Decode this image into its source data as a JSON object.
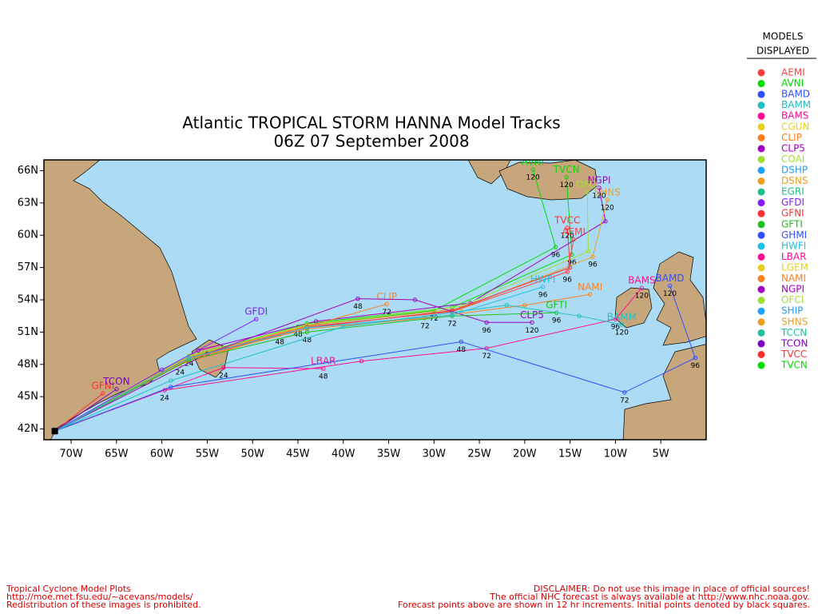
{
  "chart_data": {
    "type": "track-map",
    "title": [
      "Atlantic TROPICAL STORM HANNA Model Tracks",
      "06Z 07 September 2008"
    ],
    "xlim": [
      -73,
      0
    ],
    "ylim": [
      41,
      67
    ],
    "xticks": [
      {
        "value": -70,
        "label": "70W"
      },
      {
        "value": -65,
        "label": "65W"
      },
      {
        "value": -60,
        "label": "60W"
      },
      {
        "value": -55,
        "label": "55W"
      },
      {
        "value": -50,
        "label": "50W"
      },
      {
        "value": -45,
        "label": "45W"
      },
      {
        "value": -40,
        "label": "40W"
      },
      {
        "value": -35,
        "label": "35W"
      },
      {
        "value": -30,
        "label": "30W"
      },
      {
        "value": -25,
        "label": "25W"
      },
      {
        "value": -20,
        "label": "20W"
      },
      {
        "value": -15,
        "label": "15W"
      },
      {
        "value": -10,
        "label": "10W"
      },
      {
        "value": -5,
        "label": "5W"
      }
    ],
    "yticks": [
      {
        "value": 42,
        "label": "42N"
      },
      {
        "value": 45,
        "label": "45N"
      },
      {
        "value": 48,
        "label": "48N"
      },
      {
        "value": 51,
        "label": "51N"
      },
      {
        "value": 54,
        "label": "54N"
      },
      {
        "value": 57,
        "label": "57N"
      },
      {
        "value": 60,
        "label": "60N"
      },
      {
        "value": 63,
        "label": "63N"
      },
      {
        "value": 66,
        "label": "66N"
      }
    ],
    "start": {
      "lon": -71.8,
      "lat": 41.8
    },
    "tracks": [
      {
        "name": "AVNI",
        "color": "#00dd00",
        "points": [
          {
            "lon": -71.8,
            "lat": 41.8
          },
          {
            "lon": -57,
            "lat": 48.8,
            "hour": 24
          },
          {
            "lon": -45,
            "lat": 51.5,
            "hour": 48
          },
          {
            "lon": -30,
            "lat": 53.0,
            "hour": 72
          },
          {
            "lon": -16.6,
            "lat": 58.9,
            "hour": 96
          },
          {
            "lon": -19.1,
            "lat": 66.1,
            "hour": 120
          }
        ]
      },
      {
        "name": "TVCN",
        "color": "#00dd00",
        "points": [
          {
            "lon": -71.8,
            "lat": 41.8
          },
          {
            "lon": -57,
            "lat": 48.6
          },
          {
            "lon": -44,
            "lat": 51.8
          },
          {
            "lon": -28,
            "lat": 53.3
          },
          {
            "lon": -14.8,
            "lat": 58.2,
            "hour": 96
          },
          {
            "lon": -15.4,
            "lat": 65.4,
            "hour": 120
          }
        ]
      },
      {
        "name": "NGPI",
        "color": "#a000c0",
        "points": [
          {
            "lon": -71.8,
            "lat": 41.8
          },
          {
            "lon": -56,
            "lat": 49.3
          },
          {
            "lon": -43,
            "lat": 52.0
          },
          {
            "lon": -26,
            "lat": 53.7
          },
          {
            "lon": -11.1,
            "lat": 61.3
          },
          {
            "lon": -11.8,
            "lat": 64.4,
            "hour": 120
          }
        ]
      },
      {
        "name": "SHNS",
        "color": "#f0a020",
        "points": [
          {
            "lon": -71.8,
            "lat": 41.8
          },
          {
            "lon": -57,
            "lat": 48.7
          },
          {
            "lon": -44,
            "lat": 51.6
          },
          {
            "lon": -27,
            "lat": 53.2
          },
          {
            "lon": -12.5,
            "lat": 58.0,
            "hour": 96
          },
          {
            "lon": -10.9,
            "lat": 63.3,
            "hour": 120
          }
        ]
      },
      {
        "name": "OFCI",
        "color": "#a0e030",
        "points": [
          {
            "lon": -71.8,
            "lat": 41.8
          },
          {
            "lon": -57,
            "lat": 48.8
          },
          {
            "lon": -44,
            "lat": 51.7
          },
          {
            "lon": -27,
            "lat": 53.4
          },
          {
            "lon": -13,
            "lat": 58.5
          },
          {
            "lon": -13.1,
            "lat": 64.0
          }
        ]
      },
      {
        "name": "TVCC",
        "color": "#ff3030",
        "points": [
          {
            "lon": -71.8,
            "lat": 41.8
          },
          {
            "lon": -57,
            "lat": 48.5
          },
          {
            "lon": -44,
            "lat": 51.4
          },
          {
            "lon": -28,
            "lat": 53.0
          },
          {
            "lon": -15,
            "lat": 57.0
          },
          {
            "lon": -15.3,
            "lat": 60.7,
            "hour": 120
          }
        ]
      },
      {
        "name": "AEMI",
        "color": "#ff4040",
        "points": [
          {
            "lon": -71.8,
            "lat": 41.8
          },
          {
            "lon": -57,
            "lat": 48.6
          },
          {
            "lon": -44,
            "lat": 51.5
          },
          {
            "lon": -28,
            "lat": 52.9
          },
          {
            "lon": -15.3,
            "lat": 56.6,
            "hour": 96
          },
          {
            "lon": -14.6,
            "lat": 59.6
          }
        ]
      },
      {
        "name": "CLIP",
        "color": "#ff8020",
        "points": [
          {
            "lon": -71.8,
            "lat": 41.8
          },
          {
            "lon": -58,
            "lat": 48.0,
            "hour": 24
          },
          {
            "lon": -47,
            "lat": 50.8,
            "hour": 48
          },
          {
            "lon": -35.2,
            "lat": 53.6,
            "hour": 72
          }
        ]
      },
      {
        "name": "GFDI",
        "color": "#8020ff",
        "points": [
          {
            "lon": -71.8,
            "lat": 41.8
          },
          {
            "lon": -60,
            "lat": 47.5
          },
          {
            "lon": -49.6,
            "lat": 52.2
          }
        ]
      },
      {
        "name": "LBAR",
        "color": "#ff1090",
        "points": [
          {
            "lon": -71.8,
            "lat": 41.8
          },
          {
            "lon": -53.2,
            "lat": 47.7,
            "hour": 24
          },
          {
            "lon": -42.2,
            "lat": 47.6,
            "hour": 48
          }
        ]
      },
      {
        "name": "CLP5",
        "color": "#a000c0",
        "points": [
          {
            "lon": -71.8,
            "lat": 41.8
          },
          {
            "lon": -55,
            "lat": 49.0
          },
          {
            "lon": -38.4,
            "lat": 54.1,
            "hour": 48
          },
          {
            "lon": -32.1,
            "lat": 54.0
          },
          {
            "lon": -24.2,
            "lat": 51.9,
            "hour": 96
          },
          {
            "lon": -19.2,
            "lat": 51.9,
            "hour": 120
          }
        ]
      },
      {
        "name": "NAMI",
        "color": "#ff8020",
        "points": [
          {
            "lon": -71.8,
            "lat": 41.8
          },
          {
            "lon": -57,
            "lat": 48.5
          },
          {
            "lon": -44,
            "lat": 51.3
          },
          {
            "lon": -31,
            "lat": 52.3,
            "hour": 72
          },
          {
            "lon": -20,
            "lat": 53.5
          },
          {
            "lon": -12.8,
            "lat": 54.5
          }
        ]
      },
      {
        "name": "GFTI",
        "color": "#20c020",
        "points": [
          {
            "lon": -71.8,
            "lat": 41.8
          },
          {
            "lon": -57,
            "lat": 48.4
          },
          {
            "lon": -44,
            "lat": 51.0,
            "hour": 48
          },
          {
            "lon": -28,
            "lat": 52.5,
            "hour": 72
          },
          {
            "lon": -16.5,
            "lat": 52.8,
            "hour": 96
          }
        ]
      },
      {
        "name": "HWFI",
        "color": "#20c0e0",
        "points": [
          {
            "lon": -71.8,
            "lat": 41.8
          },
          {
            "lon": -57,
            "lat": 48.6
          },
          {
            "lon": -44,
            "lat": 51.4
          },
          {
            "lon": -28,
            "lat": 52.6
          },
          {
            "lon": -18,
            "lat": 55.2,
            "hour": 96
          }
        ]
      },
      {
        "name": "BAMS",
        "color": "#ff1090",
        "points": [
          {
            "lon": -71.8,
            "lat": 41.8
          },
          {
            "lon": -59.7,
            "lat": 45.6,
            "hour": 24
          },
          {
            "lon": -38,
            "lat": 48.3
          },
          {
            "lon": -24.2,
            "lat": 49.5,
            "hour": 72
          },
          {
            "lon": -10,
            "lat": 52.2,
            "hour": 96
          },
          {
            "lon": -7.1,
            "lat": 55.1,
            "hour": 120
          }
        ]
      },
      {
        "name": "BAMD",
        "color": "#3050ff",
        "points": [
          {
            "lon": -71.8,
            "lat": 41.8
          },
          {
            "lon": -59,
            "lat": 45.9
          },
          {
            "lon": -27,
            "lat": 50.1,
            "hour": 48
          },
          {
            "lon": -9,
            "lat": 45.4,
            "hour": 72
          },
          {
            "lon": -1.2,
            "lat": 48.6,
            "hour": 96
          },
          {
            "lon": -4,
            "lat": 55.3,
            "hour": 120
          }
        ]
      },
      {
        "name": "BAMM",
        "color": "#20c0c0",
        "points": [
          {
            "lon": -71.8,
            "lat": 41.8
          },
          {
            "lon": -59,
            "lat": 46.5
          },
          {
            "lon": -40,
            "lat": 51.5
          },
          {
            "lon": -22,
            "lat": 53.5
          },
          {
            "lon": -14,
            "lat": 52.5
          },
          {
            "lon": -9.3,
            "lat": 51.7,
            "hour": 120
          }
        ]
      },
      {
        "name": "GFNI",
        "color": "#ff3030",
        "points": [
          {
            "lon": -71.8,
            "lat": 41.8
          },
          {
            "lon": -66.5,
            "lat": 45.3
          }
        ]
      },
      {
        "name": "TCON",
        "color": "#8000c0",
        "points": [
          {
            "lon": -71.8,
            "lat": 41.8
          },
          {
            "lon": -65,
            "lat": 45.7
          }
        ]
      }
    ],
    "legend": {
      "title": [
        "MODELS",
        "DISPLAYED"
      ],
      "models": [
        {
          "name": "AEMI",
          "color": "#ff4040"
        },
        {
          "name": "AVNI",
          "color": "#00dd00"
        },
        {
          "name": "BAMD",
          "color": "#3050ff"
        },
        {
          "name": "BAMM",
          "color": "#20c0c0"
        },
        {
          "name": "BAMS",
          "color": "#ff1090"
        },
        {
          "name": "CGUN",
          "color": "#e8d020"
        },
        {
          "name": "CLIP",
          "color": "#ff8020"
        },
        {
          "name": "CLP5",
          "color": "#a000c0"
        },
        {
          "name": "COAI",
          "color": "#a0e030"
        },
        {
          "name": "DSHP",
          "color": "#20a0ff"
        },
        {
          "name": "DSNS",
          "color": "#f0a020"
        },
        {
          "name": "EGRI",
          "color": "#20c080"
        },
        {
          "name": "GFDI",
          "color": "#8020ff"
        },
        {
          "name": "GFNI",
          "color": "#ff3030"
        },
        {
          "name": "GFTI",
          "color": "#20c020"
        },
        {
          "name": "GHMI",
          "color": "#3050ff"
        },
        {
          "name": "HWFI",
          "color": "#20c0e0"
        },
        {
          "name": "LBAR",
          "color": "#ff1090"
        },
        {
          "name": "LGEM",
          "color": "#e8d020"
        },
        {
          "name": "NAMI",
          "color": "#ff8020"
        },
        {
          "name": "NGPI",
          "color": "#a000c0"
        },
        {
          "name": "OFCI",
          "color": "#a0e030"
        },
        {
          "name": "SHIP",
          "color": "#20a0ff"
        },
        {
          "name": "SHNS",
          "color": "#f0a020"
        },
        {
          "name": "TCCN",
          "color": "#20c0a0"
        },
        {
          "name": "TCON",
          "color": "#8000c0"
        },
        {
          "name": "TVCC",
          "color": "#ff3030"
        },
        {
          "name": "TVCN",
          "color": "#00dd00"
        }
      ]
    }
  },
  "footer": {
    "left": [
      "Tropical Cyclone Model Plots",
      "http://moe.met.fsu.edu/~acevans/models/",
      "Redistribution of these images is prohibited."
    ],
    "right": [
      "DISCLAIMER: Do not use this image in place of official sources!",
      "The official NHC forecast is always available at http://www.nhc.noaa.gov.",
      "Forecast points above are shown in 12 hr increments. Initial points denoted by black squares."
    ]
  }
}
